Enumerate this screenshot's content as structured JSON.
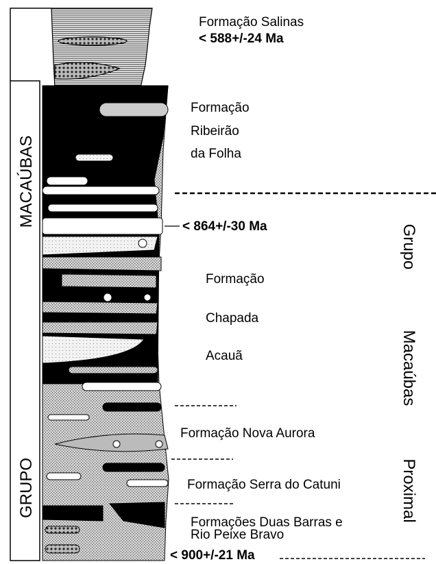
{
  "top_unit": {
    "name": "Formação Salinas",
    "age": "< 588+/-24 Ma"
  },
  "units": [
    {
      "lines": [
        "Formação",
        "Ribeirão",
        "da Folha"
      ]
    },
    {
      "lines": [
        "Formação",
        "Chapada",
        "Acauã"
      ]
    },
    {
      "lines": [
        "Formação Nova Aurora"
      ]
    },
    {
      "lines": [
        "Formação Serra do Catuni"
      ]
    },
    {
      "lines": [
        "Formações Duas Barras e",
        "Rio Peixe Bravo"
      ]
    }
  ],
  "ages": [
    "< 864+/-30 Ma",
    "< 900+/-21 Ma"
  ],
  "side_labels": {
    "left": [
      "MACAÚBAS",
      "GRUPO"
    ],
    "right": [
      "Grupo",
      "Macaúbas",
      "Proximal"
    ]
  }
}
